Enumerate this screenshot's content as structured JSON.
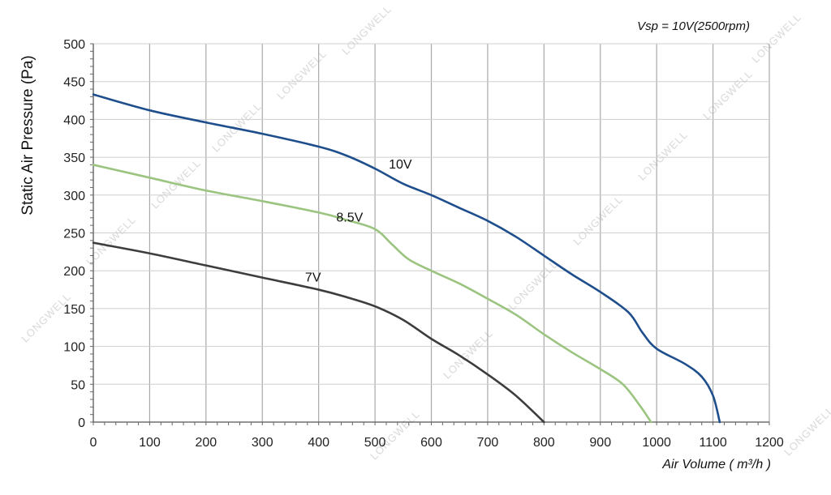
{
  "chart_data": {
    "type": "line",
    "note": "Vsp = 10V(2500rpm)",
    "xlabel": "Air Volume ( m³/h )",
    "ylabel": "Static Air Pressure  (Pa)",
    "xlim": [
      0,
      1200
    ],
    "ylim": [
      0,
      500
    ],
    "x_ticks": [
      0,
      100,
      200,
      300,
      400,
      500,
      600,
      700,
      800,
      900,
      1000,
      1100,
      1200
    ],
    "y_ticks": [
      0,
      50,
      100,
      150,
      200,
      250,
      300,
      350,
      400,
      450,
      500
    ],
    "grid": true,
    "watermark": "LONGWELL",
    "series": [
      {
        "name": "10V",
        "color": "#1f4e8c",
        "x": [
          0,
          100,
          200,
          300,
          400,
          450,
          500,
          550,
          600,
          650,
          700,
          750,
          800,
          850,
          900,
          950,
          975,
          1000,
          1050,
          1080,
          1100,
          1112
        ],
        "y": [
          433,
          412,
          396,
          381,
          364,
          352,
          335,
          315,
          300,
          283,
          266,
          245,
          220,
          195,
          172,
          145,
          118,
          97,
          77,
          60,
          35,
          0
        ]
      },
      {
        "name": "8.5V",
        "color": "#9ac47f",
        "x": [
          0,
          100,
          200,
          300,
          400,
          450,
          500,
          530,
          560,
          600,
          650,
          700,
          750,
          800,
          850,
          900,
          940,
          970,
          990
        ],
        "y": [
          340,
          323,
          306,
          292,
          277,
          267,
          255,
          235,
          215,
          200,
          183,
          163,
          142,
          116,
          92,
          70,
          50,
          22,
          0
        ]
      },
      {
        "name": "7V",
        "color": "#3d3d3d",
        "x": [
          0,
          100,
          200,
          300,
          400,
          450,
          500,
          550,
          600,
          650,
          700,
          750,
          800
        ],
        "y": [
          237,
          223,
          207,
          191,
          175,
          165,
          153,
          135,
          110,
          88,
          63,
          35,
          0
        ]
      }
    ]
  }
}
